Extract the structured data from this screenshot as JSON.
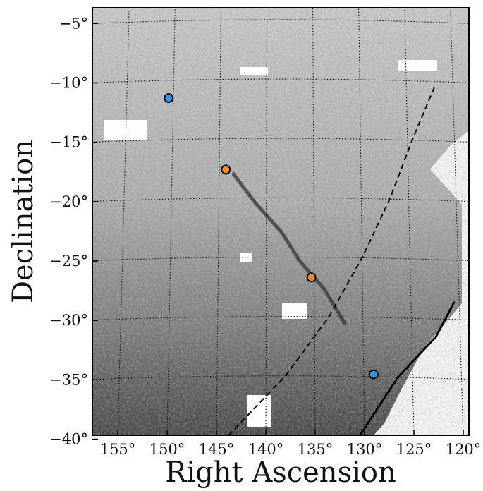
{
  "chart_data": {
    "type": "scatter",
    "title": "",
    "xlabel": "Right Ascension",
    "ylabel": "Declination",
    "xlim": [
      159,
      118
    ],
    "ylim": [
      -40,
      -4
    ],
    "x_ticks": [
      {
        "value": 155,
        "label": "155°"
      },
      {
        "value": 150,
        "label": "150°"
      },
      {
        "value": 145,
        "label": "145°"
      },
      {
        "value": 140,
        "label": "140°"
      },
      {
        "value": 135,
        "label": "135°"
      },
      {
        "value": 130,
        "label": "130°"
      },
      {
        "value": 125,
        "label": "125°"
      },
      {
        "value": 120,
        "label": "120°"
      }
    ],
    "y_ticks": [
      {
        "value": -5,
        "label": "−5°"
      },
      {
        "value": -10,
        "label": "−10°"
      },
      {
        "value": -15,
        "label": "−15°"
      },
      {
        "value": -20,
        "label": "−20°"
      },
      {
        "value": -25,
        "label": "−25°"
      },
      {
        "value": -30,
        "label": "−30°"
      },
      {
        "value": -35,
        "label": "−35°"
      },
      {
        "value": -40,
        "label": "−40°"
      }
    ],
    "grid": true,
    "background": "grayscale stellar density map",
    "series": [
      {
        "marker_color": "#2f93f0",
        "points": [
          {
            "x": 150.5,
            "y": -11.5
          },
          {
            "x": 129.0,
            "y": -34.8
          }
        ]
      },
      {
        "marker_color": "#f68a21",
        "points": [
          {
            "x": 144.3,
            "y": -17.6
          },
          {
            "x": 135.3,
            "y": -26.7
          }
        ]
      }
    ],
    "curves": [
      {
        "style": "dashed",
        "color": "#000000",
        "points": [
          [
            143.8,
            -40
          ],
          [
            138,
            -35
          ],
          [
            133.5,
            -30
          ],
          [
            130,
            -25
          ],
          [
            127,
            -20
          ],
          [
            124.5,
            -15
          ],
          [
            122,
            -10.5
          ]
        ]
      },
      {
        "style": "solid",
        "color": "#000000",
        "points": [
          [
            130.5,
            -40
          ],
          [
            126.5,
            -35
          ],
          [
            122.5,
            -31.5
          ],
          [
            120.5,
            -28.5
          ]
        ]
      }
    ]
  }
}
